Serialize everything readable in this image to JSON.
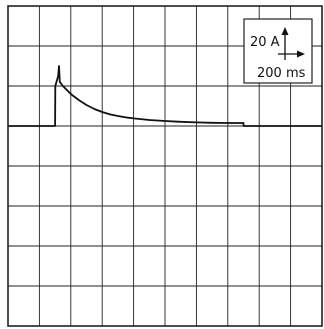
{
  "chart_data": {
    "type": "line",
    "title": "",
    "xlabel": "",
    "ylabel": "",
    "grid": true,
    "divisions": {
      "x": 10,
      "y": 8
    },
    "x_unit": "ms",
    "y_unit": "A",
    "scale": {
      "y_label": "20 A",
      "x_label": "200 ms",
      "placement": "top-right"
    },
    "xlim": [
      0,
      2000
    ],
    "ylim": [
      -100,
      60
    ],
    "series": [
      {
        "points": [
          [
            0,
            0
          ],
          [
            300,
            0
          ],
          [
            301,
            20
          ],
          [
            320,
            25
          ],
          [
            325,
            30
          ],
          [
            330,
            22
          ],
          [
            350,
            20
          ],
          [
            400,
            16
          ],
          [
            450,
            13
          ],
          [
            500,
            10.5
          ],
          [
            550,
            8.5
          ],
          [
            600,
            7
          ],
          [
            650,
            5.8
          ],
          [
            700,
            5
          ],
          [
            750,
            4.3
          ],
          [
            800,
            3.8
          ],
          [
            900,
            3
          ],
          [
            1000,
            2.5
          ],
          [
            1100,
            2.1
          ],
          [
            1200,
            1.8
          ],
          [
            1300,
            1.6
          ],
          [
            1400,
            1.5
          ],
          [
            1500,
            1.5
          ],
          [
            1500,
            0
          ],
          [
            1600,
            0
          ],
          [
            2000,
            0
          ]
        ]
      }
    ]
  }
}
